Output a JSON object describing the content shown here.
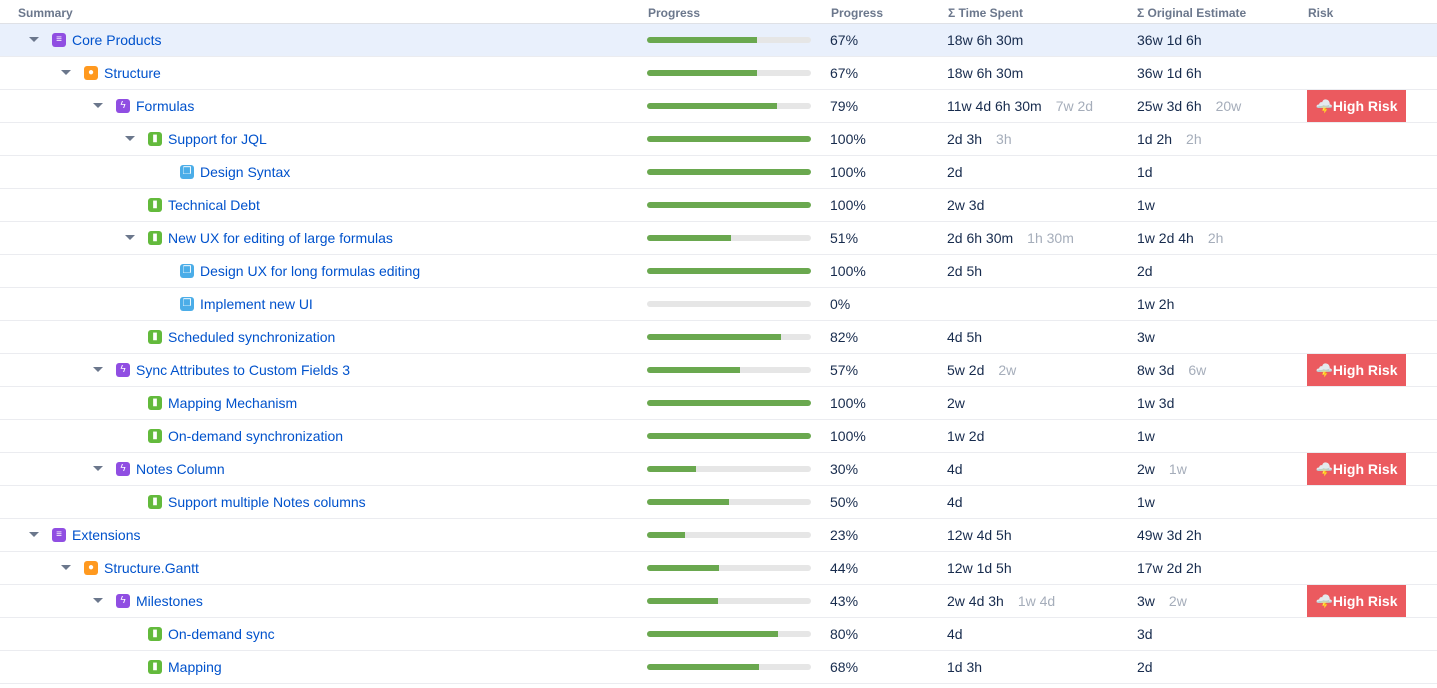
{
  "headers": {
    "summary": "Summary",
    "progress_bar": "Progress",
    "progress": "Progress",
    "time_spent": "Σ Time Spent",
    "estimate": "Σ Original Estimate",
    "risk": "Risk"
  },
  "colors": {
    "progress": "#6aa84f",
    "risk": "#eb5a5f",
    "link": "#0052cc"
  },
  "rows": [
    {
      "level": 0,
      "type": "epic",
      "expand": true,
      "name": "Core Products",
      "progress": 67,
      "pct": "67%",
      "ts": "18w 6h 30m",
      "ts_own": "",
      "est": "36w 1d 6h",
      "est_own": "",
      "risk": "",
      "selected": true
    },
    {
      "level": 1,
      "type": "idea",
      "expand": true,
      "name": "Structure",
      "progress": 67,
      "pct": "67%",
      "ts": "18w 6h 30m",
      "ts_own": "",
      "est": "36w 1d 6h",
      "est_own": "",
      "risk": ""
    },
    {
      "level": 2,
      "type": "feature",
      "expand": true,
      "name": "Formulas",
      "progress": 79,
      "pct": "79%",
      "ts": "11w 4d 6h 30m",
      "ts_own": "7w 2d",
      "est": "25w 3d 6h",
      "est_own": "20w",
      "risk": "🌩️High Risk"
    },
    {
      "level": 3,
      "type": "story",
      "expand": true,
      "name": "Support for JQL",
      "progress": 100,
      "pct": "100%",
      "ts": "2d 3h",
      "ts_own": "3h",
      "est": "1d 2h",
      "est_own": "2h",
      "risk": ""
    },
    {
      "level": 4,
      "type": "sub",
      "expand": false,
      "name": "Design Syntax",
      "progress": 100,
      "pct": "100%",
      "ts": "2d",
      "ts_own": "",
      "est": "1d",
      "est_own": "",
      "risk": ""
    },
    {
      "level": 3,
      "type": "story",
      "expand": false,
      "name": "Technical Debt",
      "progress": 100,
      "pct": "100%",
      "ts": "2w 3d",
      "ts_own": "",
      "est": "1w",
      "est_own": "",
      "risk": ""
    },
    {
      "level": 3,
      "type": "story",
      "expand": true,
      "name": "New UX for editing of large formulas",
      "progress": 51,
      "pct": "51%",
      "ts": "2d 6h 30m",
      "ts_own": "1h 30m",
      "est": "1w 2d 4h",
      "est_own": "2h",
      "risk": ""
    },
    {
      "level": 4,
      "type": "sub",
      "expand": false,
      "name": "Design UX for long formulas editing",
      "progress": 100,
      "pct": "100%",
      "ts": "2d 5h",
      "ts_own": "",
      "est": "2d",
      "est_own": "",
      "risk": ""
    },
    {
      "level": 4,
      "type": "sub",
      "expand": false,
      "name": "Implement new UI",
      "progress": 0,
      "pct": "0%",
      "ts": "",
      "ts_own": "",
      "est": "1w 2h",
      "est_own": "",
      "risk": ""
    },
    {
      "level": 3,
      "type": "story",
      "expand": false,
      "name": "Scheduled synchronization",
      "progress": 82,
      "pct": "82%",
      "ts": "4d 5h",
      "ts_own": "",
      "est": "3w",
      "est_own": "",
      "risk": ""
    },
    {
      "level": 2,
      "type": "feature",
      "expand": true,
      "name": "Sync Attributes to Custom Fields 3",
      "progress": 57,
      "pct": "57%",
      "ts": "5w 2d",
      "ts_own": "2w",
      "est": "8w 3d",
      "est_own": "6w",
      "risk": "🌩️High Risk"
    },
    {
      "level": 3,
      "type": "story",
      "expand": false,
      "name": "Mapping Mechanism",
      "progress": 100,
      "pct": "100%",
      "ts": "2w",
      "ts_own": "",
      "est": "1w 3d",
      "est_own": "",
      "risk": ""
    },
    {
      "level": 3,
      "type": "story",
      "expand": false,
      "name": "On-demand synchronization",
      "progress": 100,
      "pct": "100%",
      "ts": "1w 2d",
      "ts_own": "",
      "est": "1w",
      "est_own": "",
      "risk": ""
    },
    {
      "level": 2,
      "type": "feature",
      "expand": true,
      "name": "Notes Column",
      "progress": 30,
      "pct": "30%",
      "ts": "4d",
      "ts_own": "",
      "est": "2w",
      "est_own": "1w",
      "risk": "🌩️High Risk"
    },
    {
      "level": 3,
      "type": "story",
      "expand": false,
      "name": "Support multiple Notes columns",
      "progress": 50,
      "pct": "50%",
      "ts": "4d",
      "ts_own": "",
      "est": "1w",
      "est_own": "",
      "risk": ""
    },
    {
      "level": 0,
      "type": "epic",
      "expand": true,
      "name": "Extensions",
      "progress": 23,
      "pct": "23%",
      "ts": "12w 4d 5h",
      "ts_own": "",
      "est": "49w 3d 2h",
      "est_own": "",
      "risk": ""
    },
    {
      "level": 1,
      "type": "idea",
      "expand": true,
      "name": "Structure.Gantt",
      "progress": 44,
      "pct": "44%",
      "ts": "12w 1d 5h",
      "ts_own": "",
      "est": "17w 2d 2h",
      "est_own": "",
      "risk": ""
    },
    {
      "level": 2,
      "type": "feature",
      "expand": true,
      "name": "Milestones",
      "progress": 43,
      "pct": "43%",
      "ts": "2w 4d 3h",
      "ts_own": "1w 4d",
      "est": "3w",
      "est_own": "2w",
      "risk": "🌩️High Risk"
    },
    {
      "level": 3,
      "type": "story",
      "expand": false,
      "name": "On-demand sync",
      "progress": 80,
      "pct": "80%",
      "ts": "4d",
      "ts_own": "",
      "est": "3d",
      "est_own": "",
      "risk": ""
    },
    {
      "level": 3,
      "type": "story",
      "expand": false,
      "name": "Mapping",
      "progress": 68,
      "pct": "68%",
      "ts": "1d 3h",
      "ts_own": "",
      "est": "2d",
      "est_own": "",
      "risk": ""
    }
  ]
}
